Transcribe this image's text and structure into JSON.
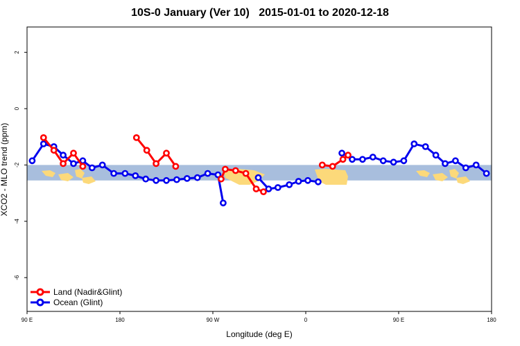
{
  "chart_data": {
    "type": "line",
    "title_left": "10S-0 January (Ver 10)",
    "title_right": "2015-01-01 to 2020-12-18",
    "xlabel": "Longitude (deg E)",
    "ylabel": "XCO2 - MLO trend (ppm)",
    "xlim": [
      90,
      540
    ],
    "ylim": [
      -7.2,
      2.9
    ],
    "x_ticks": [
      {
        "value": 90,
        "label": "90 E"
      },
      {
        "value": 180,
        "label": "180"
      },
      {
        "value": 270,
        "label": "90 W"
      },
      {
        "value": 360,
        "label": "0"
      },
      {
        "value": 450,
        "label": "90 E"
      },
      {
        "value": 540,
        "label": "180"
      }
    ],
    "y_ticks": [
      {
        "value": 2,
        "label": "2"
      },
      {
        "value": 0,
        "label": "0"
      },
      {
        "value": -2,
        "label": "-2"
      },
      {
        "value": -4,
        "label": "-4"
      },
      {
        "value": -6,
        "label": "-6"
      }
    ],
    "map_band": {
      "lat_range_ppm": [
        -2.55,
        -2.0
      ],
      "ocean_color": "#a8bedd",
      "land_color": "#fcd97a"
    },
    "series": [
      {
        "name": "Land (Nadir&Glint)",
        "color": "#ff0000",
        "segments": [
          [
            [
              106,
              -1.03
            ],
            [
              116,
              -1.48
            ],
            [
              125,
              -1.95
            ],
            [
              135,
              -1.58
            ],
            [
              144,
              -2.05
            ]
          ],
          [
            [
              278,
              -2.5
            ],
            [
              282,
              -2.15
            ],
            [
              292,
              -2.2
            ],
            [
              302,
              -2.3
            ],
            [
              312,
              -2.85
            ],
            [
              319,
              -2.95
            ]
          ],
          [
            [
              376,
              -2.0
            ],
            [
              386,
              -2.05
            ],
            [
              396,
              -1.8
            ],
            [
              401,
              -1.65
            ]
          ],
          [
            [
              196,
              -1.03
            ],
            [
              206,
              -1.48
            ],
            [
              215,
              -1.95
            ],
            [
              225,
              -1.58
            ],
            [
              234,
              -2.05
            ]
          ]
        ]
      },
      {
        "name": "Ocean (Glint)",
        "color": "#0000ee",
        "segments": [
          [
            [
              95,
              -1.85
            ],
            [
              106,
              -1.25
            ],
            [
              116,
              -1.35
            ],
            [
              125,
              -1.65
            ],
            [
              135,
              -1.95
            ],
            [
              144,
              -1.85
            ],
            [
              153,
              -2.1
            ],
            [
              163,
              -2.0
            ],
            [
              174,
              -2.3
            ],
            [
              185,
              -2.3
            ],
            [
              195,
              -2.38
            ],
            [
              205,
              -2.5
            ],
            [
              215,
              -2.55
            ],
            [
              225,
              -2.55
            ],
            [
              235,
              -2.52
            ],
            [
              245,
              -2.48
            ],
            [
              255,
              -2.45
            ],
            [
              265,
              -2.3
            ],
            [
              275,
              -2.35
            ],
            [
              280,
              -3.35
            ]
          ],
          [
            [
              314,
              -2.45
            ],
            [
              324,
              -2.85
            ],
            [
              333,
              -2.8
            ],
            [
              344,
              -2.7
            ],
            [
              353,
              -2.58
            ],
            [
              362,
              -2.55
            ],
            [
              372,
              -2.6
            ]
          ],
          [
            [
              395,
              -1.58
            ],
            [
              405,
              -1.8
            ],
            [
              415,
              -1.8
            ],
            [
              425,
              -1.72
            ],
            [
              435,
              -1.85
            ],
            [
              445,
              -1.9
            ],
            [
              455,
              -1.85
            ],
            [
              465,
              -1.25
            ],
            [
              476,
              -1.35
            ],
            [
              486,
              -1.65
            ],
            [
              495,
              -1.95
            ],
            [
              505,
              -1.85
            ],
            [
              515,
              -2.1
            ],
            [
              525,
              -2.0
            ],
            [
              535,
              -2.3
            ]
          ]
        ]
      }
    ]
  }
}
